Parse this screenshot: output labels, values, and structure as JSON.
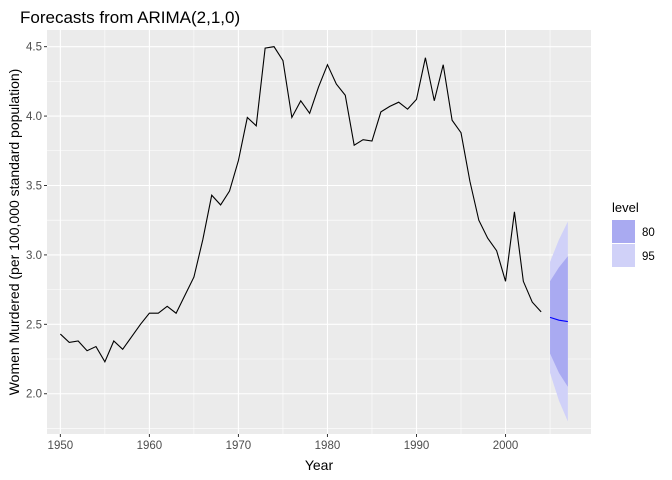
{
  "chart_data": {
    "type": "line",
    "title": "Forecasts from ARIMA(2,1,0)",
    "xlabel": "Year",
    "ylabel": "Women Murdered (per 100,000 standard population)",
    "xlim": [
      1948.5,
      2009.6
    ],
    "ylim": [
      1.71,
      4.62
    ],
    "x_ticks": [
      1950,
      1960,
      1970,
      1980,
      1990,
      2000
    ],
    "y_ticks": [
      2.0,
      2.5,
      3.0,
      3.5,
      4.0,
      4.5
    ],
    "x_tick_labels": [
      "1950",
      "1960",
      "1970",
      "1980",
      "1990",
      "2000"
    ],
    "y_tick_labels": [
      "2.0",
      "2.5",
      "3.0",
      "3.5",
      "4.0",
      "4.5"
    ],
    "grid": true,
    "legend": {
      "title": "level",
      "position": "right",
      "entries": [
        {
          "label": "80",
          "color": "#a9aaf1"
        },
        {
          "label": "95",
          "color": "#d0d1f8"
        }
      ]
    },
    "colors": {
      "panel": "#ebebeb",
      "grid_major": "#ffffff",
      "history_line": "#000000",
      "forecast_line": "#0000ff",
      "band_80": "#a9aaf1",
      "band_95": "#d0d1f8"
    },
    "series": [
      {
        "x": [
          1950,
          1951,
          1952,
          1953,
          1954,
          1955,
          1956,
          1957,
          1958,
          1959,
          1960,
          1961,
          1962,
          1963,
          1964,
          1965,
          1966,
          1967,
          1968,
          1969,
          1970,
          1971,
          1972,
          1973,
          1974,
          1975,
          1976,
          1977,
          1978,
          1979,
          1980,
          1981,
          1982,
          1983,
          1984,
          1985,
          1986,
          1987,
          1988,
          1989,
          1990,
          1991,
          1992,
          1993,
          1994,
          1995,
          1996,
          1997,
          1998,
          1999,
          2000,
          2001,
          2002,
          2003,
          2004
        ],
        "values": [
          2.43,
          2.37,
          2.38,
          2.31,
          2.34,
          2.23,
          2.38,
          2.32,
          2.41,
          2.5,
          2.58,
          2.58,
          2.63,
          2.58,
          2.71,
          2.84,
          3.11,
          3.43,
          3.36,
          3.46,
          3.68,
          3.99,
          3.93,
          4.49,
          4.5,
          4.4,
          3.99,
          4.11,
          4.02,
          4.21,
          4.37,
          4.23,
          4.15,
          3.79,
          3.83,
          3.82,
          4.03,
          4.07,
          4.1,
          4.05,
          4.12,
          4.42,
          4.11,
          4.37,
          3.97,
          3.88,
          3.53,
          3.25,
          3.12,
          3.03,
          2.81,
          3.31,
          2.81,
          2.66,
          2.59
        ]
      },
      {
        "x": [
          2005,
          2006,
          2007
        ],
        "values": [
          2.55,
          2.53,
          2.52
        ],
        "lo80": [
          2.29,
          2.15,
          2.05
        ],
        "hi80": [
          2.81,
          2.91,
          2.99
        ],
        "lo95": [
          2.15,
          1.95,
          1.8
        ],
        "hi95": [
          2.95,
          3.11,
          3.24
        ]
      }
    ]
  }
}
